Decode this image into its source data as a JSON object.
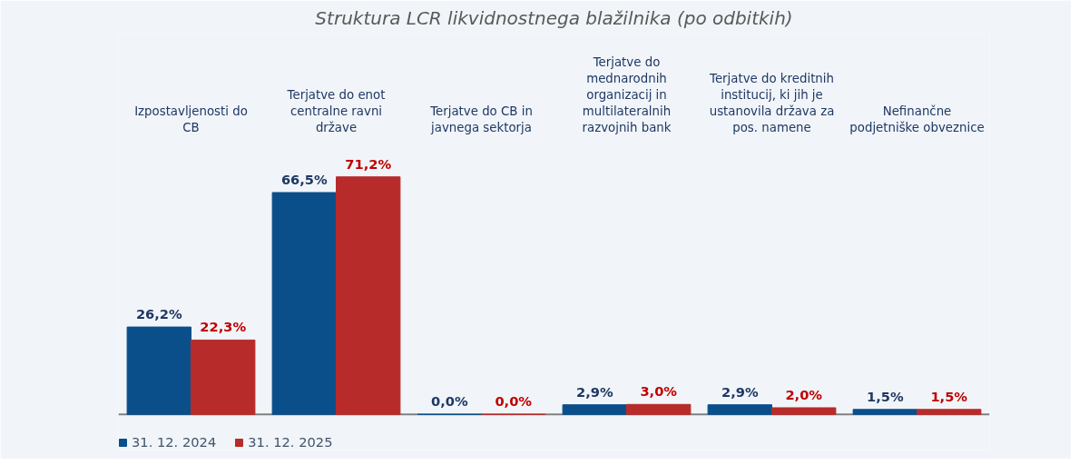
{
  "chart_data": {
    "type": "bar",
    "title": "Struktura LCR likvidnostnega blažilnika (po odbitkih)",
    "categories": [
      "Izpostavljenosti do CB",
      "Terjatve do enot centralne ravni države",
      "Terjatve do CB in javnega sektorja",
      "Terjatve do mednarodnih organizacij in multilateralnih razvojnih bank",
      "Terjatve do kreditnih institucij, ki jih je ustanovila država za pos. namene",
      "Nefinančne podjetniške obveznice"
    ],
    "series": [
      {
        "name": "31. 12. 2024",
        "color": "#0b4f8a",
        "values": [
          26.2,
          66.5,
          0.0,
          2.9,
          2.9,
          1.5
        ],
        "value_labels": [
          "26,2%",
          "66,5%",
          "0,0%",
          "2,9%",
          "2,9%",
          "1,5%"
        ]
      },
      {
        "name": "31. 12. 2025",
        "color": "#b72b2a",
        "values": [
          22.3,
          71.2,
          0.0,
          3.0,
          2.0,
          1.5
        ],
        "value_labels": [
          "22,3%",
          "71,2%",
          "0,0%",
          "3,0%",
          "2,0%",
          "1,5%"
        ]
      }
    ],
    "legend": "bottom left"
  }
}
